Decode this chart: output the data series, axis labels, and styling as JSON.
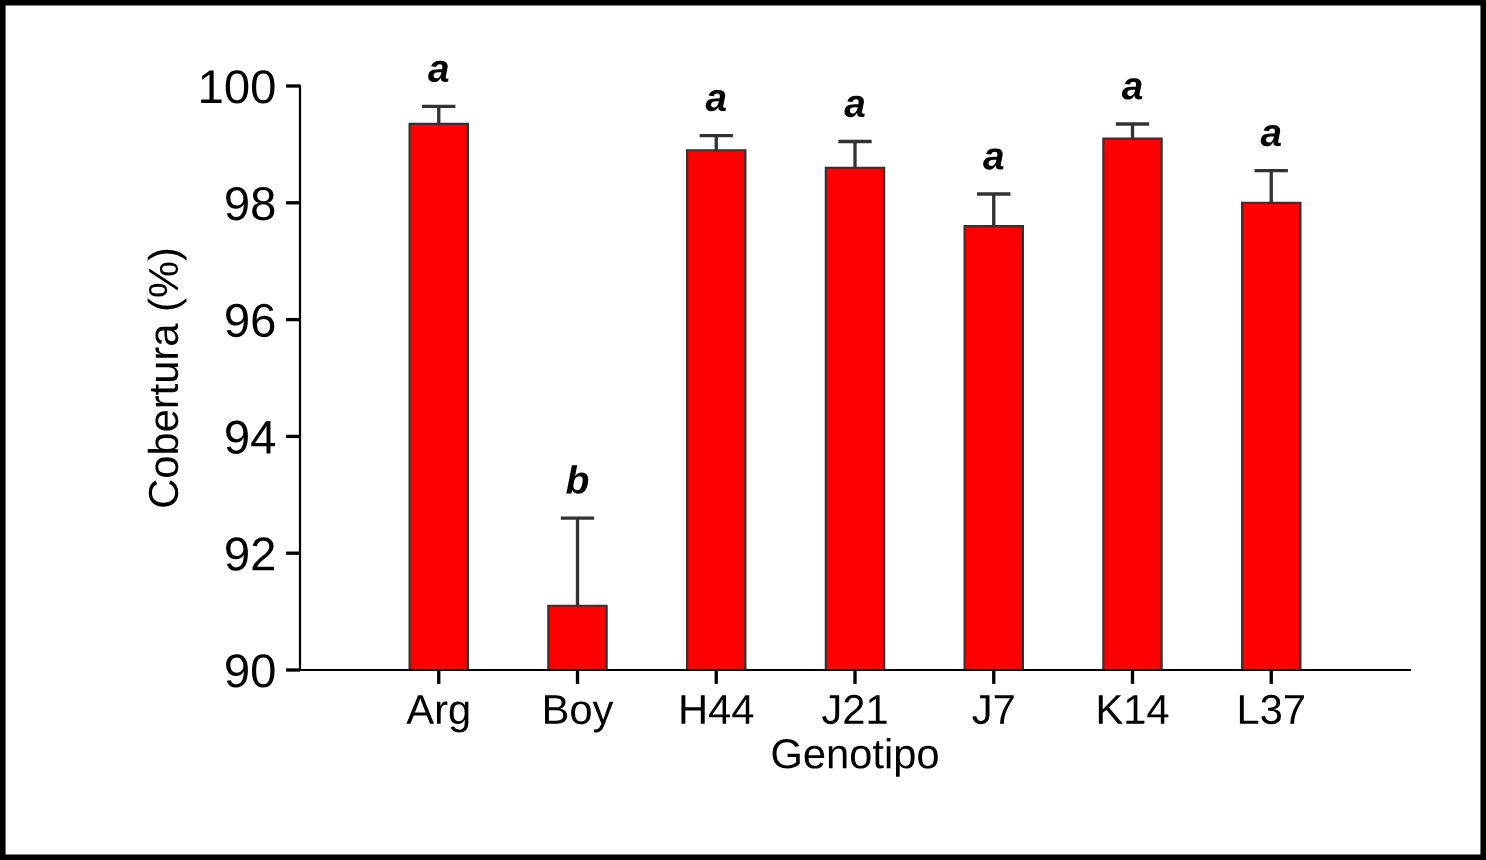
{
  "chart_data": {
    "type": "bar",
    "xlabel": "Genotipo",
    "ylabel": "Cobertura (%)",
    "categories": [
      "Arg",
      "Boy",
      "H44",
      "J21",
      "J7",
      "K14",
      "L37"
    ],
    "values": [
      99.35,
      91.1,
      98.9,
      98.6,
      97.6,
      99.1,
      98.0
    ],
    "errors": [
      0.3,
      1.5,
      0.25,
      0.45,
      0.55,
      0.25,
      0.55
    ],
    "color": "#ff0000",
    "ylim": [
      90,
      100
    ],
    "yticks": [
      90,
      92,
      94,
      96,
      98,
      100
    ],
    "grid": false,
    "annotations": [
      {
        "text": "a",
        "x": "Arg",
        "y": 99.65
      },
      {
        "text": "b",
        "x": "Boy",
        "y": 92.6
      },
      {
        "text": "a",
        "x": "H44",
        "y": 99.15
      },
      {
        "text": "a",
        "x": "J21",
        "y": 99.05
      },
      {
        "text": "a",
        "x": "J7",
        "y": 98.15
      },
      {
        "text": "a",
        "x": "K14",
        "y": 99.35
      },
      {
        "text": "a",
        "x": "L37",
        "y": 98.55
      }
    ]
  }
}
